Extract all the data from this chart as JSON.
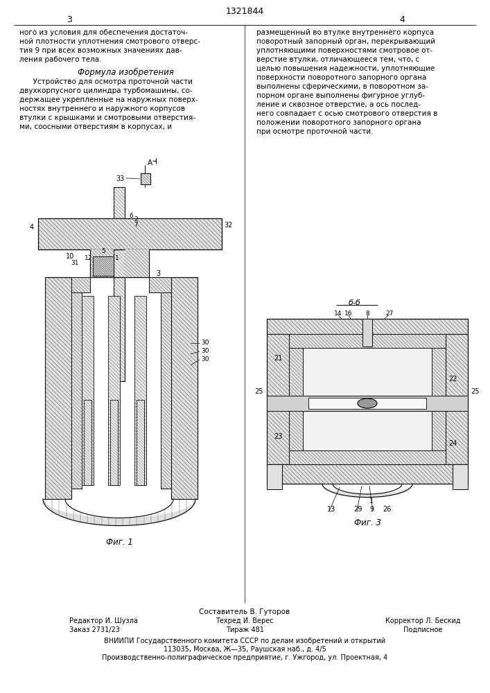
{
  "patent_number": "1321844",
  "page_left_num": "3",
  "page_right_num": "4",
  "col_left_top": "ного из условия для обеспечения достаточ-\nной плотности уплотнения смотрового отверс-\nтия 9 при всех возможных значениях дав-\nления рабочего тела.",
  "formula_header": "Формула изобретения",
  "formula_text": "      Устройство для осмотра проточной части\nдвухкорпусного цилиндра турбомашины, со-\nдержащее укрепленные на наружных поверх-\nностях внутреннего и наружного корпусов\nвтулки с крышками и смотровыми отверстия-\nми, соосными отверстиям в корпусах, и",
  "col_right_top": "размещенный во втулке внутреннего корпуса\nповоротный запорный орган, перекрывающий\nуплотняющими поверхностями смотровое от-\nверстие втулки, отличающееся тем, что, с\nцелью повышения надежности, уплотняющие\nповерхности поворотного запорного органа\nвыполнены сферическими, в поворотном за-\nпорном органе выполнены фигурное углуб-\nление и сквозное отверстие, а ось послед-\nнего совпадает с осью смотрового отверстия в\nположении поворотного запорного органа\nпри осмотре проточной части.",
  "fig1_caption": "Фиг. 1",
  "fig3_caption": "Фиг. 3",
  "section_label": "б-б",
  "footer_compiler": "Составитель В. Гуторов",
  "footer_editor": "Редактор И. Шузла",
  "footer_techr": "Техред И. Верес",
  "footer_corrector": "Корректор Л. Бескид",
  "footer_order": "Заказ 2731/23",
  "footer_tirazh": "Тираж 481",
  "footer_podpis": "Подписное",
  "footer_vniiipi": "ВНИИПИ Государственного комитета СССР по делам изобретений и открытий",
  "footer_addr1": "113035, Москва, Ж—35, Раушская наб., д. 4/5",
  "footer_addr2": "Производственно-полиграфическое предприятие, г. Ужгород, ул. Проектная, 4",
  "bg_color": "#ffffff",
  "text_color": "#000000"
}
